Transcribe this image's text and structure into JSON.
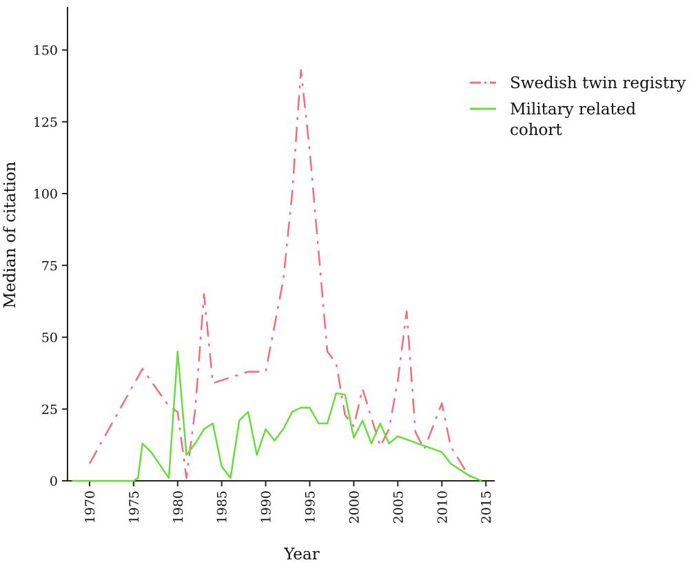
{
  "chart_data": {
    "type": "line",
    "title": "",
    "xlabel": "Year",
    "ylabel": "Median of citation",
    "xlim": [
      1967.5,
      2016
    ],
    "ylim": [
      0,
      165
    ],
    "xticks": [
      1970,
      1975,
      1980,
      1985,
      1990,
      1995,
      2000,
      2005,
      2010,
      2015
    ],
    "yticks": [
      0,
      25,
      50,
      75,
      100,
      125,
      150
    ],
    "grid": false,
    "legend_position": "right",
    "series": [
      {
        "name": "Swedish twin registry",
        "color": "#f06c7e",
        "style": "dash-dot",
        "points": [
          [
            1970,
            6
          ],
          [
            1976,
            39
          ],
          [
            1979,
            26
          ],
          [
            1980,
            24
          ],
          [
            1981,
            1
          ],
          [
            1982,
            25
          ],
          [
            1983,
            65
          ],
          [
            1984,
            34
          ],
          [
            1985,
            35
          ],
          [
            1987,
            37
          ],
          [
            1988,
            38
          ],
          [
            1990,
            38
          ],
          [
            1992,
            70
          ],
          [
            1993,
            100
          ],
          [
            1994,
            143
          ],
          [
            1995,
            115
          ],
          [
            1997,
            45
          ],
          [
            1998,
            41
          ],
          [
            1999,
            23
          ],
          [
            2000,
            19
          ],
          [
            2001,
            32
          ],
          [
            2003,
            12
          ],
          [
            2004,
            18
          ],
          [
            2005,
            35
          ],
          [
            2006,
            59
          ],
          [
            2007,
            17
          ],
          [
            2008,
            11
          ],
          [
            2010,
            27
          ],
          [
            2011,
            12
          ],
          [
            2013,
            2
          ],
          [
            2014,
            0
          ]
        ]
      },
      {
        "name": "Military related cohort",
        "color": "#66dd3a",
        "style": "solid",
        "points": [
          [
            1968,
            0
          ],
          [
            1975,
            0
          ],
          [
            1975.5,
            1
          ],
          [
            1976,
            13
          ],
          [
            1977,
            10
          ],
          [
            1979,
            1
          ],
          [
            1980,
            45
          ],
          [
            1981,
            9
          ],
          [
            1982,
            13
          ],
          [
            1983,
            18
          ],
          [
            1984,
            20
          ],
          [
            1985,
            5
          ],
          [
            1986,
            1
          ],
          [
            1987,
            21
          ],
          [
            1988,
            24
          ],
          [
            1989,
            9
          ],
          [
            1990,
            18
          ],
          [
            1991,
            14
          ],
          [
            1992,
            18
          ],
          [
            1993,
            24
          ],
          [
            1994,
            25.5
          ],
          [
            1995,
            25.5
          ],
          [
            1996,
            20
          ],
          [
            1997,
            20
          ],
          [
            1998,
            30.5
          ],
          [
            1999,
            30
          ],
          [
            2000,
            15
          ],
          [
            2001,
            21
          ],
          [
            2002,
            13
          ],
          [
            2003,
            20
          ],
          [
            2004,
            13
          ],
          [
            2005,
            15.5
          ],
          [
            2010,
            10
          ],
          [
            2011,
            6
          ],
          [
            2013,
            2
          ],
          [
            2014.5,
            0
          ]
        ]
      }
    ]
  }
}
